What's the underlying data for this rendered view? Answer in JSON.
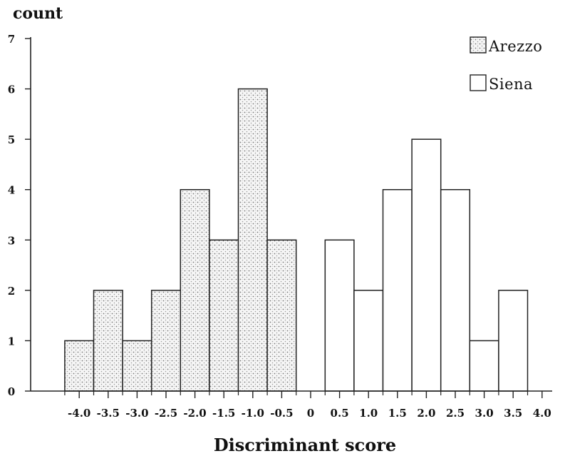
{
  "chart_data": {
    "type": "bar",
    "ylabel": "count",
    "xlabel": "Discriminant score",
    "ylim": [
      0,
      7
    ],
    "xlim": [
      -4.4,
      4.2
    ],
    "bin_width": 0.5,
    "y_ticks": [
      0,
      1,
      2,
      3,
      4,
      5,
      6,
      7
    ],
    "x_tick_labels": [
      "-4.0",
      "-3.5",
      "-3.0",
      "-2.5",
      "-2.0",
      "-1.5",
      "-1.0",
      "-0.5",
      "0",
      "0.5",
      "1.0",
      "1.5",
      "2.0",
      "2.5",
      "3.0",
      "3.5",
      "4.0"
    ],
    "grid": false,
    "legend_position": "top-right",
    "series": [
      {
        "name": "Arezzo",
        "fill": "stippled",
        "bins": [
          {
            "center": -4.0,
            "value": 1
          },
          {
            "center": -3.5,
            "value": 2
          },
          {
            "center": -3.0,
            "value": 1
          },
          {
            "center": -2.5,
            "value": 2
          },
          {
            "center": -2.0,
            "value": 4
          },
          {
            "center": -1.5,
            "value": 3
          },
          {
            "center": -1.0,
            "value": 6
          },
          {
            "center": -0.5,
            "value": 3
          }
        ]
      },
      {
        "name": "Siena",
        "fill": "none",
        "bins": [
          {
            "center": 0.5,
            "value": 3
          },
          {
            "center": 1.0,
            "value": 2
          },
          {
            "center": 1.5,
            "value": 4
          },
          {
            "center": 2.0,
            "value": 5
          },
          {
            "center": 2.5,
            "value": 4
          },
          {
            "center": 3.0,
            "value": 1
          },
          {
            "center": 3.5,
            "value": 2
          }
        ]
      }
    ]
  }
}
